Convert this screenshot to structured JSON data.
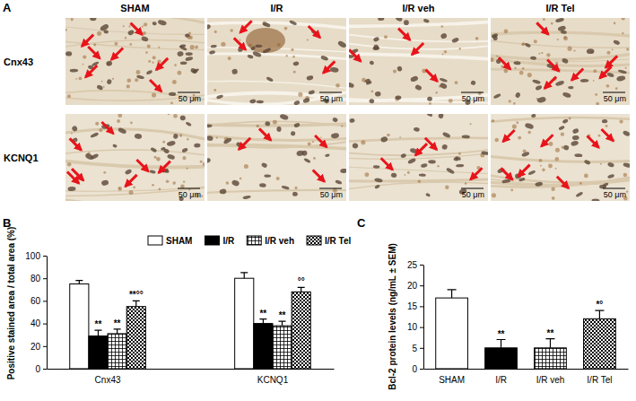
{
  "micrographs": {
    "title": "A",
    "columns": [
      "SHAM",
      "I/R",
      "I/R veh",
      "I/R Tel"
    ],
    "rows": [
      "Cnx43",
      "KCNQ1"
    ],
    "scale_bar": "50 μm"
  },
  "chart_data": [
    {
      "type": "bar",
      "title": "B",
      "ylabel": "Positive stained area / total area (%)",
      "categories": [
        "Cnx43",
        "KCNQ1"
      ],
      "series": [
        {
          "name": "SHAM",
          "color": "#ffffff",
          "values": [
            75,
            80
          ],
          "errors": [
            3,
            5
          ]
        },
        {
          "name": "I/R",
          "color": "#000000",
          "values": [
            29,
            40
          ],
          "errors": [
            5,
            4
          ],
          "annotations": [
            "**",
            "**"
          ]
        },
        {
          "name": "I/R veh",
          "color": "#ffffff",
          "values": [
            31,
            38
          ],
          "errors": [
            4,
            4
          ],
          "annotations": [
            "**",
            "**"
          ]
        },
        {
          "name": "I/R Tel",
          "color": "#ffffff",
          "values": [
            55,
            68
          ],
          "errors": [
            5,
            4
          ],
          "annotations": [
            "**°°",
            "°°"
          ]
        }
      ],
      "ylim": [
        0,
        100
      ],
      "yticks": [
        0,
        20,
        40,
        60,
        80,
        100
      ],
      "grid": false,
      "legend": "top"
    },
    {
      "type": "bar",
      "title": "C",
      "ylabel": "Bcl-2 protein levels (ng/mL ± SEM)",
      "categories": [
        "SHAM",
        "I/R",
        "I/R veh",
        "I/R Tel"
      ],
      "values": [
        17,
        5,
        5,
        12
      ],
      "errors": [
        2,
        2,
        2.2,
        2
      ],
      "annotations": [
        null,
        "**",
        "**",
        "*°"
      ],
      "colors": [
        "#ffffff",
        "#000000",
        "#ffffff",
        "#ffffff"
      ],
      "ylim": [
        0,
        25
      ],
      "yticks": [
        0,
        5,
        10,
        15,
        20,
        25
      ],
      "grid": false
    }
  ]
}
